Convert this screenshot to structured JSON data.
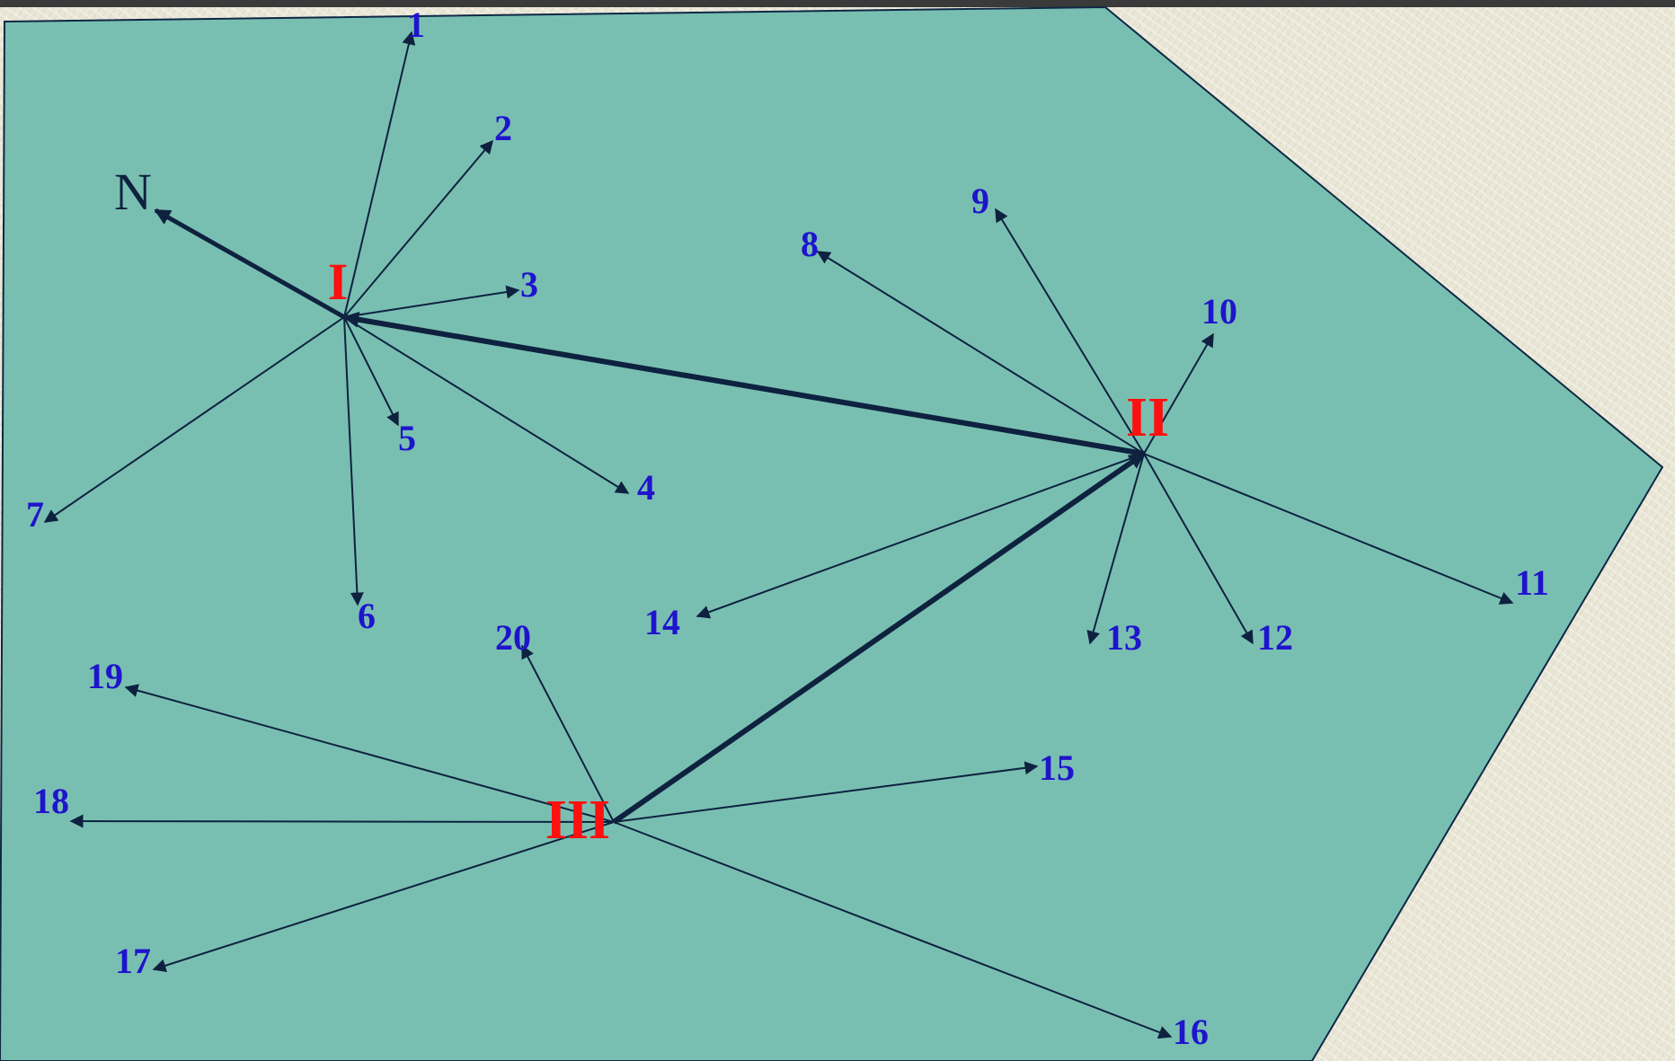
{
  "colors": {
    "area_fill": "#79bfb1",
    "area_stroke": "#0e2845",
    "ray": "#0e2240",
    "traverse": "#0e2240",
    "point_label": "#1f14cc",
    "station_label": "#ff1010"
  },
  "north": {
    "label": "N"
  },
  "stations": [
    {
      "id": "I",
      "label": "I"
    },
    {
      "id": "II",
      "label": "II"
    },
    {
      "id": "III",
      "label": "III"
    }
  ],
  "points": [
    {
      "label": "1",
      "station": "I"
    },
    {
      "label": "2",
      "station": "I"
    },
    {
      "label": "3",
      "station": "I"
    },
    {
      "label": "4",
      "station": "I"
    },
    {
      "label": "5",
      "station": "I"
    },
    {
      "label": "6",
      "station": "I"
    },
    {
      "label": "7",
      "station": "I"
    },
    {
      "label": "8",
      "station": "II"
    },
    {
      "label": "9",
      "station": "II"
    },
    {
      "label": "10",
      "station": "II"
    },
    {
      "label": "11",
      "station": "II"
    },
    {
      "label": "12",
      "station": "II"
    },
    {
      "label": "13",
      "station": "II"
    },
    {
      "label": "14",
      "station": "II"
    },
    {
      "label": "15",
      "station": "III"
    },
    {
      "label": "16",
      "station": "III"
    },
    {
      "label": "17",
      "station": "III"
    },
    {
      "label": "18",
      "station": "III"
    },
    {
      "label": "19",
      "station": "III"
    },
    {
      "label": "20",
      "station": "III"
    }
  ],
  "traverse": [
    {
      "from": "II",
      "to": "I"
    },
    {
      "from": "III",
      "to": "II"
    }
  ]
}
